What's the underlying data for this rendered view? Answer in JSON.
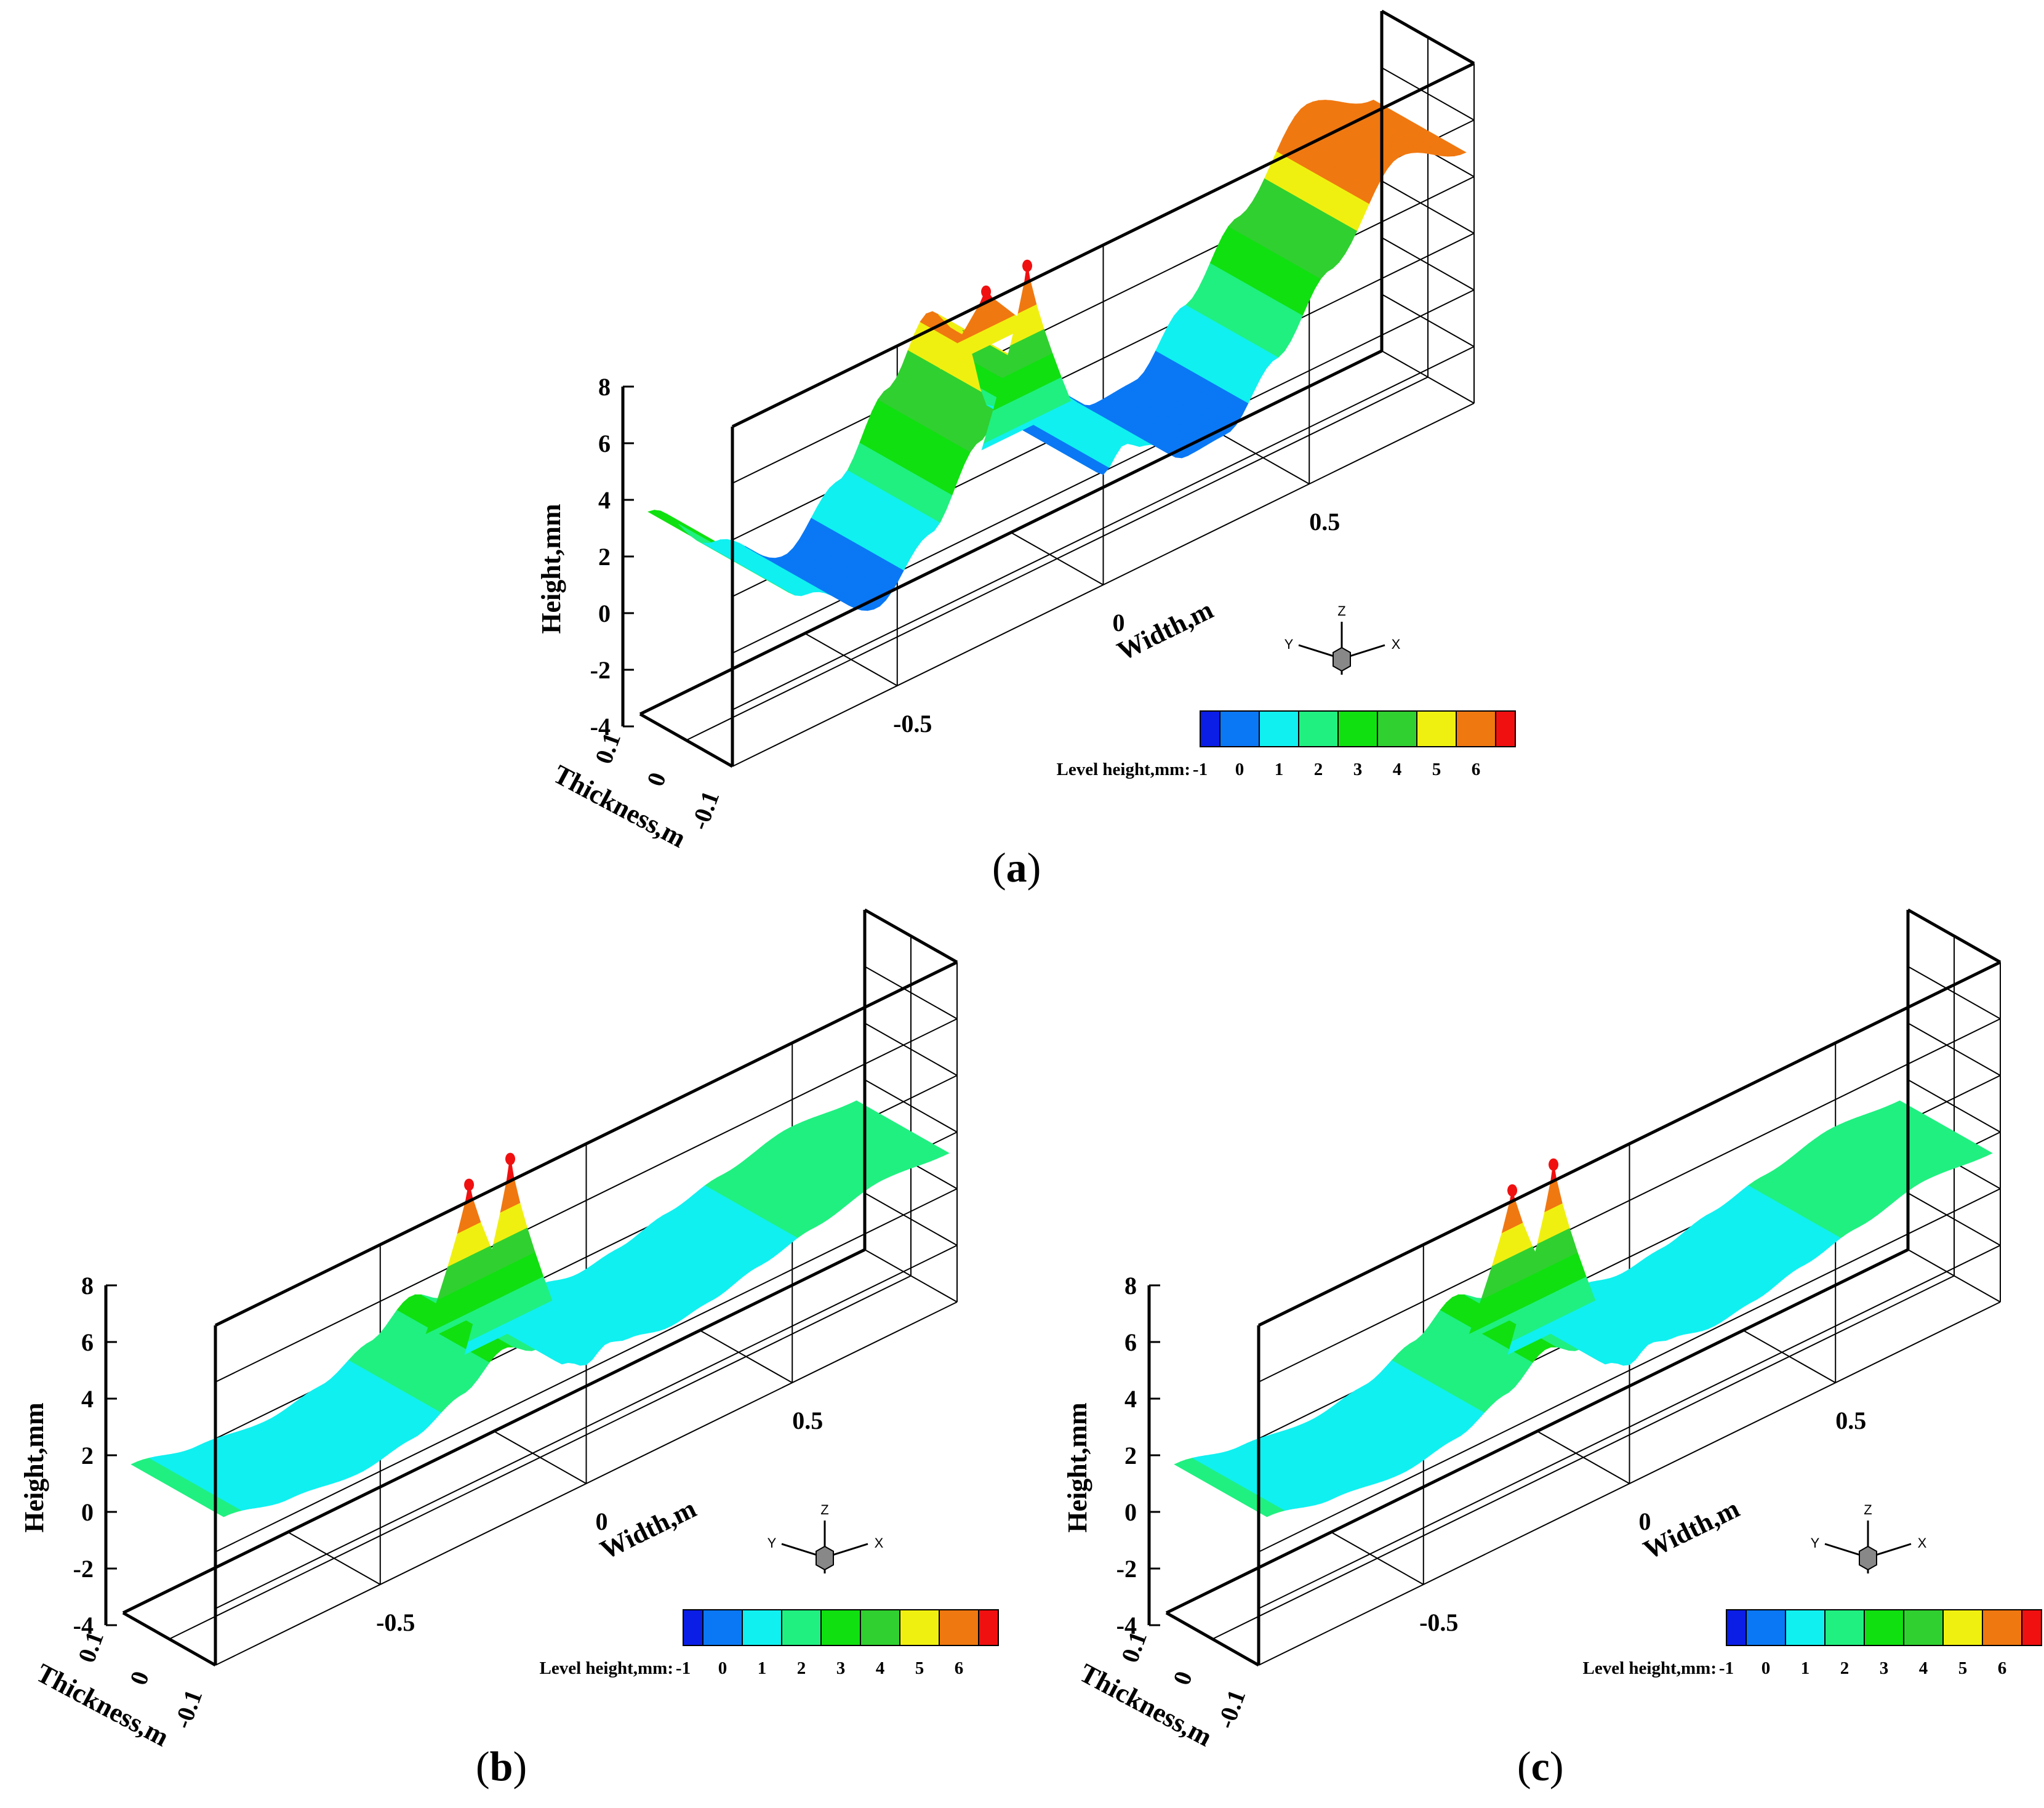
{
  "chart_data": [
    {
      "type": "surface3d",
      "panel_label": "a",
      "xlabel": "Width,m",
      "ylabel": "Thickness,m",
      "zlabel": "Height,mm",
      "x_ticks": [
        "-0.5",
        "0",
        "0.5"
      ],
      "y_ticks": [
        "0.1",
        "0",
        "-0.1"
      ],
      "z_ticks": [
        "8",
        "6",
        "4",
        "2",
        "0",
        "-2",
        "-4"
      ],
      "xlim": [
        -0.9,
        0.9
      ],
      "ylim": [
        -0.1,
        0.1
      ],
      "zlim": [
        -4,
        8
      ],
      "surface_profile": {
        "width": [
          -0.88,
          -0.72,
          -0.55,
          -0.42,
          -0.3,
          -0.2,
          -0.12,
          -0.05,
          0.0,
          0.05,
          0.1,
          0.2,
          0.3,
          0.42,
          0.55,
          0.72,
          0.88
        ],
        "height": [
          3.0,
          0.8,
          -0.9,
          0.8,
          3.2,
          5.2,
          4.0,
          0.8,
          -0.1,
          0.6,
          0.2,
          -0.9,
          -0.8,
          1.0,
          3.2,
          6.0,
          5.0
        ]
      },
      "peaks": [
        {
          "width": -0.15,
          "height": 6.4
        },
        {
          "width": -0.05,
          "height": 6.6
        }
      ],
      "legend": {
        "title": "Level height,mm:",
        "levels": [
          "-1",
          "0",
          "1",
          "2",
          "3",
          "4",
          "5",
          "6"
        ],
        "colors": [
          "#0a1ee6",
          "#0a78f5",
          "#10f0f0",
          "#20f080",
          "#10e010",
          "#30d030",
          "#f0f010",
          "#f07810",
          "#f01010"
        ]
      },
      "triad": {
        "z": "Z",
        "y": "Y",
        "x": "X"
      }
    },
    {
      "type": "surface3d",
      "panel_label": "b",
      "xlabel": "Width,m",
      "ylabel": "Thickness,m",
      "zlabel": "Height,mm",
      "x_ticks": [
        "-0.5",
        "0",
        "0.5"
      ],
      "y_ticks": [
        "0.1",
        "0",
        "-0.1"
      ],
      "z_ticks": [
        "8",
        "6",
        "4",
        "2",
        "0",
        "-2",
        "-4"
      ],
      "xlim": [
        -0.9,
        0.9
      ],
      "ylim": [
        -0.1,
        0.1
      ],
      "zlim": [
        -4,
        8
      ],
      "surface_profile": {
        "width": [
          -0.88,
          -0.72,
          -0.55,
          -0.42,
          -0.3,
          -0.2,
          -0.12,
          -0.05,
          0.0,
          0.05,
          0.1,
          0.2,
          0.3,
          0.42,
          0.55,
          0.72,
          0.88
        ],
        "height": [
          1.1,
          0.6,
          0.3,
          0.6,
          1.3,
          2.2,
          1.6,
          0.6,
          0.2,
          0.6,
          0.4,
          0.1,
          0.3,
          0.7,
          1.1,
          1.6,
          1.4
        ]
      },
      "peaks": [
        {
          "width": -0.15,
          "height": 6.6
        },
        {
          "width": -0.05,
          "height": 6.8
        }
      ],
      "legend": {
        "title": "Level height,mm:",
        "levels": [
          "-1",
          "0",
          "1",
          "2",
          "3",
          "4",
          "5",
          "6"
        ],
        "colors": [
          "#0a1ee6",
          "#0a78f5",
          "#10f0f0",
          "#20f080",
          "#10e010",
          "#30d030",
          "#f0f010",
          "#f07810",
          "#f01010"
        ]
      },
      "triad": {
        "z": "Z",
        "y": "Y",
        "x": "X"
      }
    },
    {
      "type": "surface3d",
      "panel_label": "c",
      "xlabel": "Width,m",
      "ylabel": "Thickness,m",
      "zlabel": "Height,mm",
      "x_ticks": [
        "-0.5",
        "0",
        "0.5"
      ],
      "y_ticks": [
        "0.1",
        "0",
        "-0.1"
      ],
      "z_ticks": [
        "8",
        "6",
        "4",
        "2",
        "0",
        "-2",
        "-4"
      ],
      "xlim": [
        -0.9,
        0.9
      ],
      "ylim": [
        -0.1,
        0.1
      ],
      "zlim": [
        -4,
        8
      ],
      "surface_profile": {
        "width": [
          -0.88,
          -0.72,
          -0.55,
          -0.42,
          -0.3,
          -0.2,
          -0.12,
          -0.05,
          0.0,
          0.05,
          0.1,
          0.2,
          0.3,
          0.42,
          0.55,
          0.72,
          0.88
        ],
        "height": [
          1.1,
          0.6,
          0.3,
          0.6,
          1.3,
          2.2,
          1.6,
          0.6,
          0.2,
          0.6,
          0.4,
          0.1,
          0.3,
          0.7,
          1.1,
          1.6,
          1.4
        ]
      },
      "peaks": [
        {
          "width": -0.15,
          "height": 6.4
        },
        {
          "width": -0.05,
          "height": 6.6
        }
      ],
      "legend": {
        "title": "Level height,mm:",
        "levels": [
          "-1",
          "0",
          "1",
          "2",
          "3",
          "4",
          "5",
          "6"
        ],
        "colors": [
          "#0a1ee6",
          "#0a78f5",
          "#10f0f0",
          "#20f080",
          "#10e010",
          "#30d030",
          "#f0f010",
          "#f07810",
          "#f01010"
        ]
      },
      "triad": {
        "z": "Z",
        "y": "Y",
        "x": "X"
      }
    }
  ]
}
